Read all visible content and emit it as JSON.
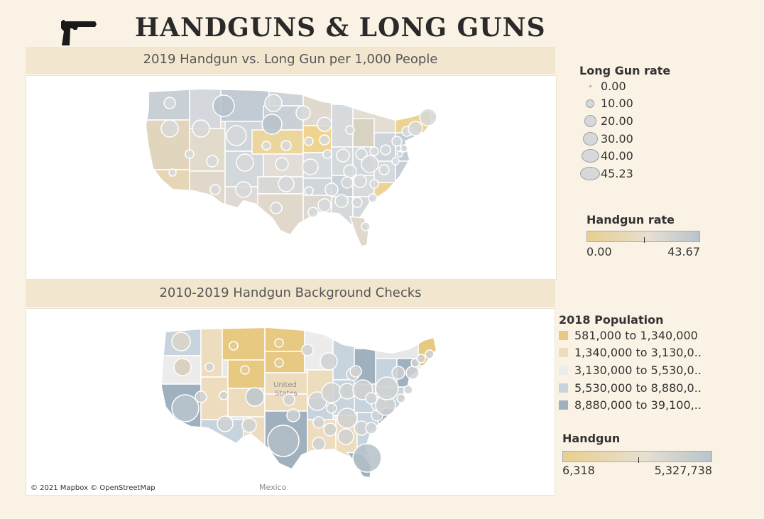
{
  "header": {
    "title": "HANDGUNS & LONG GUNS",
    "icon": "handgun-icon"
  },
  "top_panel": {
    "title": "2019 Handgun vs. Long Gun per 1,000 People",
    "map_type": "proportional-symbol choropleth",
    "region": "United States (lower 48)"
  },
  "bottom_panel": {
    "title": "2010-2019 Handgun Background Checks",
    "map_type": "proportional-symbol choropleth",
    "region": "United States (lower 48)",
    "map_labels": [
      "United",
      "States",
      "Mexico"
    ],
    "attribution": "© 2021 Mapbox © OpenStreetMap"
  },
  "legend_long_gun": {
    "title": "Long Gun rate",
    "entries": [
      "0.00",
      "10.00",
      "20.00",
      "30.00",
      "40.00",
      "45.23"
    ]
  },
  "legend_handgun_rate": {
    "title": "Handgun rate",
    "min": "0.00",
    "max": "43.67",
    "color_low": "#e8cf8f",
    "color_high": "#b7c4cd"
  },
  "legend_population": {
    "title": "2018 Population",
    "entries": [
      {
        "label": "581,000 to 1,340,000",
        "color": "#e8c982"
      },
      {
        "label": "1,340,000 to 3,130,0..",
        "color": "#eedcbe"
      },
      {
        "label": "3,130,000 to 5,530,0..",
        "color": "#ececec"
      },
      {
        "label": "5,530,000 to 8,880,0..",
        "color": "#c7d3dd"
      },
      {
        "label": "8,880,000 to 39,100,..",
        "color": "#9fb0bf"
      }
    ]
  },
  "legend_handgun": {
    "title": "Handgun",
    "min": "6,318",
    "max": "5,327,738",
    "color_low": "#e8cf8f",
    "color_high": "#b7c4cd"
  }
}
